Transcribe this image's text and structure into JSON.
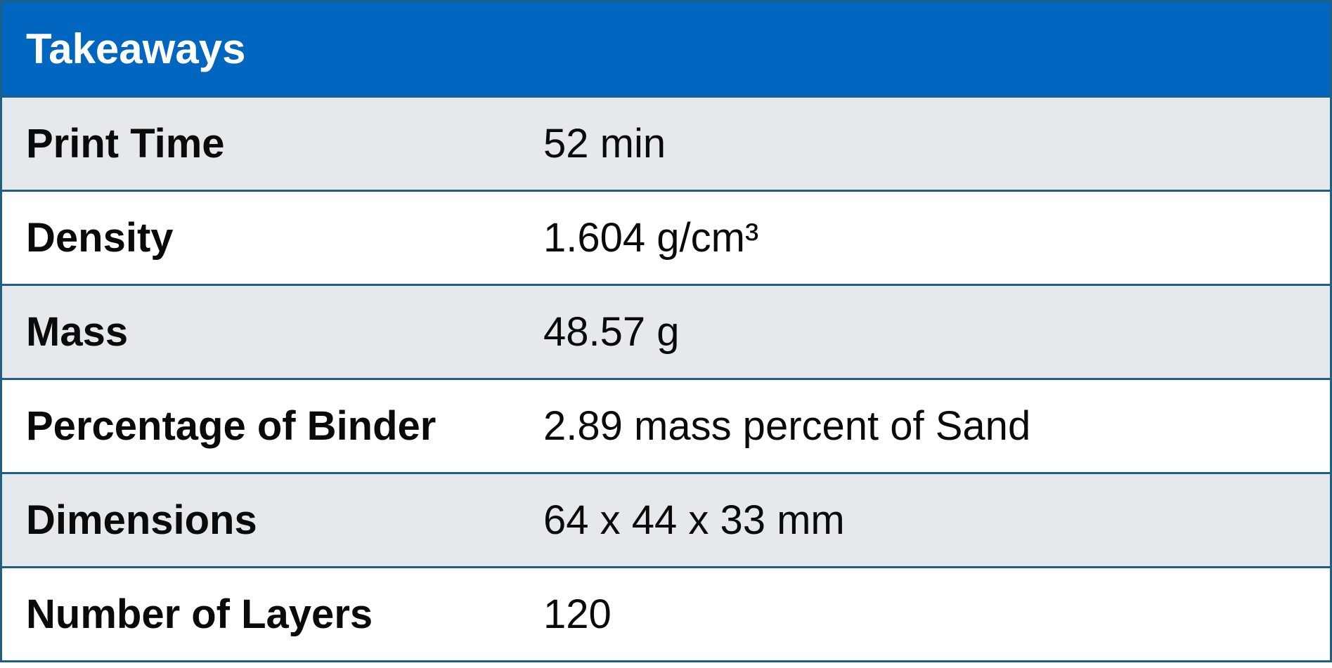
{
  "table": {
    "title": "Takeaways",
    "header_color": "#0066c0",
    "rows": [
      {
        "label": "Print Time",
        "value": "52 min"
      },
      {
        "label": "Density",
        "value": "1.604 g/cm³"
      },
      {
        "label": "Mass",
        "value": "48.57 g"
      },
      {
        "label": "Percentage of Binder",
        "value": "2.89 mass percent of Sand"
      },
      {
        "label": "Dimensions",
        "value": "64 x 44 x 33 mm"
      },
      {
        "label": "Number of Layers",
        "value": "120"
      }
    ]
  }
}
